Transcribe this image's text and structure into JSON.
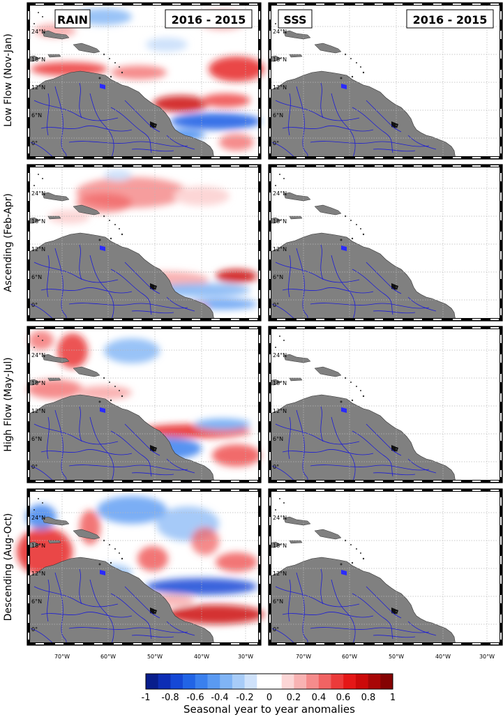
{
  "columns": [
    {
      "label": "RAIN",
      "period": "2016 - 2015"
    },
    {
      "label": "SSS",
      "period": "2016 - 2015"
    }
  ],
  "rows": [
    {
      "label": "Low Flow (Nov-Jan)"
    },
    {
      "label": "Ascending (Feb-Apr)"
    },
    {
      "label": "High Flow (May-Jul)"
    },
    {
      "label": "Descending (Aug-Oct)"
    }
  ],
  "lat_ticks": [
    "24°N",
    "18°N",
    "12°N",
    "6°N",
    "0°"
  ],
  "lon_ticks": [
    "70°W",
    "60°W",
    "50°W",
    "40°W",
    "30°W"
  ],
  "colorbar": {
    "tick_labels": [
      "-1",
      "-0.8",
      "-0.6",
      "-0.4",
      "-0.2",
      "0",
      "0.2",
      "0.4",
      "0.6",
      "0.8",
      "1"
    ],
    "title": "Seasonal year to year anomalies",
    "colors": [
      "#081d8c",
      "#0d2db5",
      "#1548d6",
      "#2164e6",
      "#3a80ee",
      "#5a9af2",
      "#80b4f5",
      "#a8ccf8",
      "#cfe2fb",
      "#ffffff",
      "#ffffff",
      "#fcd6d6",
      "#f9b3b3",
      "#f58c8c",
      "#f16363",
      "#ec3a3a",
      "#e51717",
      "#cc0a0a",
      "#a80606",
      "#850303"
    ]
  },
  "colors": {
    "land": "#808080",
    "rivers": "#1c1cd6",
    "positive": "#e51717",
    "negative": "#2164e6",
    "grid": "#b0b0b0"
  }
}
